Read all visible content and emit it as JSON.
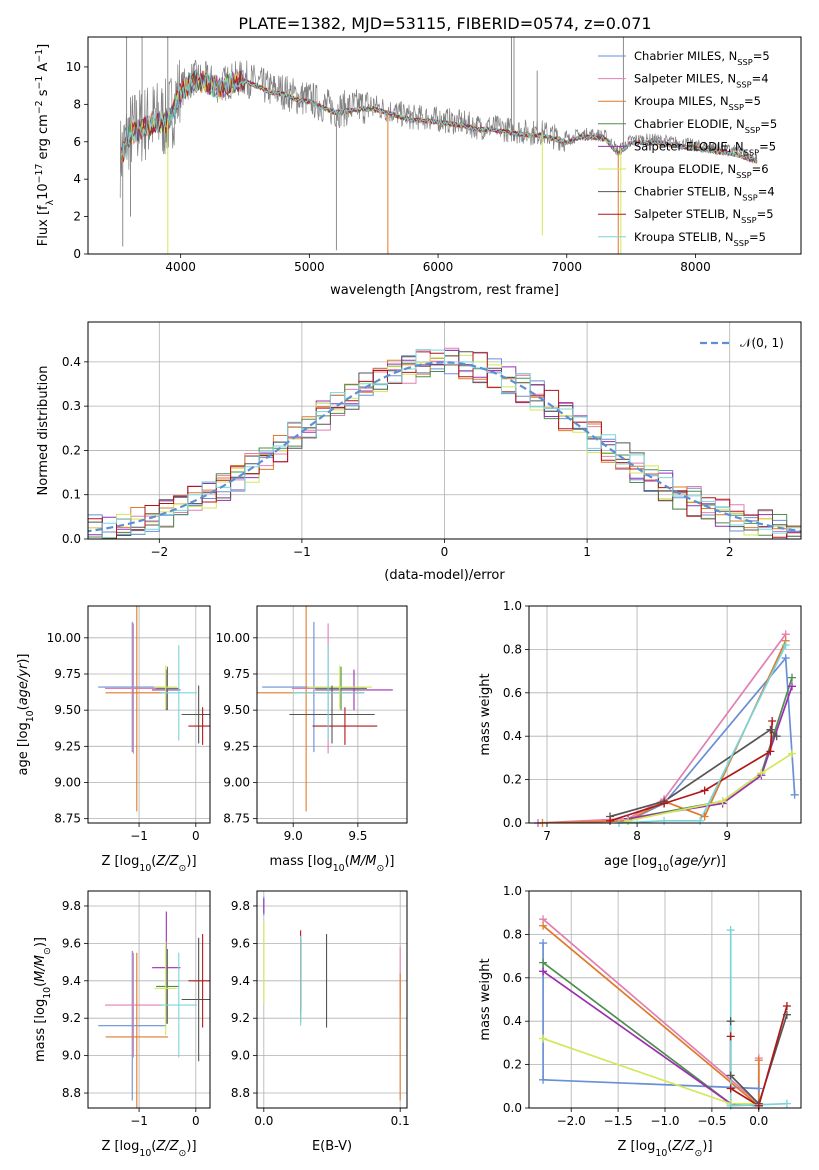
{
  "title": "PLATE=1382, MJD=53115, FIBERID=0574, z=0.071",
  "colors": {
    "Chabrier MILES": "#6a8fd6",
    "Salpeter MILES": "#e27fb2",
    "Kroupa MILES": "#e07a2a",
    "Chabrier ELODIE": "#4e8f4e",
    "Salpeter ELODIE": "#9b2fb0",
    "Kroupa ELODIE": "#d2e85a",
    "Chabrier STELIB": "#555555",
    "Salpeter STELIB": "#b01818",
    "Kroupa STELIB": "#79d5dc",
    "data": "#808080",
    "gaussian": "#5b8fd6"
  },
  "chart_data": [
    {
      "id": "spectrum",
      "type": "line",
      "xlabel": "wavelength [Angstrom, rest frame]",
      "ylabel": "Flux [f_λ 10^-17 erg cm^-2 s^-1 A^-1]",
      "xlim": [
        3280,
        8820
      ],
      "ylim": [
        0,
        11.6
      ],
      "xticks": [
        4000,
        5000,
        6000,
        7000,
        8000
      ],
      "yticks": [
        0,
        2,
        4,
        6,
        8,
        10
      ],
      "legend_position": "upper right",
      "legend": [
        {
          "model": "Chabrier MILES",
          "n": "5"
        },
        {
          "model": "Salpeter MILES",
          "n": "4"
        },
        {
          "model": "Kroupa MILES",
          "n": "5"
        },
        {
          "model": "Chabrier ELODIE",
          "n": "5"
        },
        {
          "model": "Salpeter ELODIE",
          "n": "5"
        },
        {
          "model": "Kroupa ELODIE",
          "n": "6"
        },
        {
          "model": "Chabrier STELIB",
          "n": "4"
        },
        {
          "model": "Salpeter STELIB",
          "n": "5"
        },
        {
          "model": "Kroupa STELIB",
          "n": "5"
        }
      ],
      "data_continuum": [
        [
          3530,
          5.2
        ],
        [
          3600,
          6.5
        ],
        [
          3700,
          6.9
        ],
        [
          3800,
          7.2
        ],
        [
          3900,
          7.2
        ],
        [
          4000,
          8.8
        ],
        [
          4100,
          9.4
        ],
        [
          4200,
          9.3
        ],
        [
          4300,
          9.0
        ],
        [
          4400,
          9.3
        ],
        [
          4500,
          9.4
        ],
        [
          4600,
          9.1
        ],
        [
          4700,
          8.8
        ],
        [
          4800,
          8.7
        ],
        [
          4900,
          8.4
        ],
        [
          5000,
          8.3
        ],
        [
          5100,
          8.0
        ],
        [
          5200,
          7.7
        ],
        [
          5300,
          7.8
        ],
        [
          5400,
          7.9
        ],
        [
          5500,
          7.9
        ],
        [
          5600,
          7.7
        ],
        [
          5700,
          7.5
        ],
        [
          5800,
          7.3
        ],
        [
          5900,
          7.3
        ],
        [
          6000,
          7.2
        ],
        [
          6100,
          7.1
        ],
        [
          6200,
          7.0
        ],
        [
          6300,
          6.8
        ],
        [
          6400,
          6.8
        ],
        [
          6500,
          6.7
        ],
        [
          6600,
          6.6
        ],
        [
          6700,
          6.5
        ],
        [
          6800,
          6.5
        ],
        [
          6900,
          6.3
        ],
        [
          7000,
          6.1
        ],
        [
          7100,
          6.4
        ],
        [
          7200,
          6.4
        ],
        [
          7300,
          6.3
        ],
        [
          7400,
          5.5
        ],
        [
          7500,
          6.1
        ],
        [
          7600,
          6.1
        ],
        [
          7700,
          6.1
        ],
        [
          7800,
          6.0
        ],
        [
          7900,
          5.9
        ],
        [
          8000,
          5.8
        ],
        [
          8100,
          5.7
        ],
        [
          8200,
          5.6
        ],
        [
          8300,
          5.5
        ],
        [
          8400,
          5.3
        ],
        [
          8480,
          5.1
        ]
      ],
      "data_spikes": [
        [
          3550,
          0.4
        ],
        [
          3580,
          11.6
        ],
        [
          3610,
          2.0
        ],
        [
          3700,
          11.6
        ],
        [
          3900,
          11.6
        ],
        [
          5210,
          0.2
        ],
        [
          6570,
          11.6
        ],
        [
          6590,
          11.6
        ],
        [
          6770,
          9.8
        ],
        [
          7440,
          11.6
        ]
      ],
      "model_start": 3540,
      "model_end": 8480,
      "model_dips": [
        [
          3900,
          0.0
        ],
        [
          5610,
          0.0
        ],
        [
          6810,
          1.0
        ],
        [
          7400,
          0.0
        ],
        [
          7420,
          0.0
        ]
      ]
    },
    {
      "id": "residuals",
      "type": "line",
      "xlabel": "(data-model)/error",
      "ylabel": "Normed distribution",
      "xlim": [
        -2.5,
        2.5
      ],
      "ylim": [
        0,
        0.49
      ],
      "xticks": [
        -2,
        -1,
        0,
        1,
        2
      ],
      "yticks": [
        0.0,
        0.1,
        0.2,
        0.3,
        0.4
      ],
      "legend_position": "upper right",
      "gaussian_label": "𝒩(0, 1)",
      "bin_width": 0.1,
      "bin_start": -2.6
    },
    {
      "id": "age_vs_Z",
      "type": "scatter",
      "xlabel": "Z [log10(Z/Z⊙)]",
      "ylabel": "age  [log10(age/yr)]",
      "xlim": [
        -1.9,
        0.25
      ],
      "ylim": [
        8.72,
        10.22
      ],
      "xticks": [
        -1,
        0
      ],
      "yticks": [
        8.75,
        9.0,
        9.25,
        9.5,
        9.75,
        10.0
      ],
      "points": [
        {
          "model": "Chabrier MILES",
          "x": -1.12,
          "xerr": 0.6,
          "y": 9.66,
          "yerr": 0.45
        },
        {
          "model": "Salpeter MILES",
          "x": -1.1,
          "xerr": 0.5,
          "y": 9.65,
          "yerr": 0.45
        },
        {
          "model": "Kroupa MILES",
          "x": -1.04,
          "xerr": 0.55,
          "y": 9.62,
          "yerr": 0.82
        },
        {
          "model": "Chabrier ELODIE",
          "x": -0.5,
          "xerr": 0.2,
          "y": 9.65,
          "yerr": 0.15
        },
        {
          "model": "Salpeter ELODIE",
          "x": -0.52,
          "xerr": 0.25,
          "y": 9.64,
          "yerr": 0.14
        },
        {
          "model": "Kroupa ELODIE",
          "x": -0.53,
          "xerr": 0.2,
          "y": 9.66,
          "yerr": 0.15
        },
        {
          "model": "Chabrier STELIB",
          "x": 0.05,
          "xerr": 0.3,
          "y": 9.47,
          "yerr": 0.2
        },
        {
          "model": "Salpeter STELIB",
          "x": 0.12,
          "xerr": 0.25,
          "y": 9.39,
          "yerr": 0.13
        },
        {
          "model": "Kroupa STELIB",
          "x": -0.3,
          "xerr": 0.32,
          "y": 9.62,
          "yerr": 0.33
        }
      ]
    },
    {
      "id": "age_vs_mass",
      "type": "scatter",
      "xlabel": "mass [log10(M/M⊙)]",
      "ylabel": "",
      "xlim": [
        8.72,
        9.88
      ],
      "ylim": [
        8.72,
        10.22
      ],
      "xticks": [
        9.0,
        9.5
      ],
      "yticks": [
        8.75,
        9.0,
        9.25,
        9.5,
        9.75,
        10.0
      ],
      "points": [
        {
          "model": "Chabrier MILES",
          "x": 9.16,
          "xerr": 0.4,
          "y": 9.66,
          "yerr": 0.45
        },
        {
          "model": "Salpeter MILES",
          "x": 9.27,
          "xerr": 0.28,
          "y": 9.65,
          "yerr": 0.45
        },
        {
          "model": "Kroupa MILES",
          "x": 9.1,
          "xerr": 0.45,
          "y": 9.62,
          "yerr": 0.82
        },
        {
          "model": "Chabrier ELODIE",
          "x": 9.37,
          "xerr": 0.2,
          "y": 9.65,
          "yerr": 0.15
        },
        {
          "model": "Salpeter ELODIE",
          "x": 9.47,
          "xerr": 0.3,
          "y": 9.64,
          "yerr": 0.14
        },
        {
          "model": "Kroupa ELODIE",
          "x": 9.36,
          "xerr": 0.25,
          "y": 9.66,
          "yerr": 0.15
        },
        {
          "model": "Chabrier STELIB",
          "x": 9.3,
          "xerr": 0.33,
          "y": 9.47,
          "yerr": 0.2
        },
        {
          "model": "Salpeter STELIB",
          "x": 9.4,
          "xerr": 0.25,
          "y": 9.39,
          "yerr": 0.13
        },
        {
          "model": "Kroupa STELIB",
          "x": 9.27,
          "xerr": 0.28,
          "y": 9.62,
          "yerr": 0.33
        }
      ]
    },
    {
      "id": "weight_vs_age",
      "type": "line",
      "xlabel": "age  [log10(age/yr)]",
      "ylabel": "mass weight",
      "xlim": [
        6.8,
        9.82
      ],
      "ylim": [
        0,
        1.0
      ],
      "xticks": [
        7,
        8,
        9
      ],
      "yticks": [
        0.0,
        0.2,
        0.4,
        0.6,
        0.8,
        1.0
      ],
      "series": [
        {
          "model": "Chabrier MILES",
          "x": [
            6.9,
            7.9,
            8.3,
            9.65,
            9.75
          ],
          "y": [
            0.0,
            0.01,
            0.09,
            0.76,
            0.13
          ]
        },
        {
          "model": "Salpeter MILES",
          "x": [
            6.9,
            7.9,
            8.3,
            9.65
          ],
          "y": [
            0.0,
            0.02,
            0.11,
            0.87
          ]
        },
        {
          "model": "Kroupa MILES",
          "x": [
            6.95,
            7.9,
            8.3,
            8.75,
            9.65
          ],
          "y": [
            0.0,
            0.01,
            0.1,
            0.03,
            0.84
          ]
        },
        {
          "model": "Chabrier ELODIE",
          "x": [
            7.9,
            8.95,
            9.38,
            9.72
          ],
          "y": [
            0.02,
            0.1,
            0.23,
            0.67
          ]
        },
        {
          "model": "Salpeter ELODIE",
          "x": [
            7.9,
            8.95,
            9.38,
            9.72
          ],
          "y": [
            0.02,
            0.09,
            0.22,
            0.63
          ]
        },
        {
          "model": "Kroupa ELODIE",
          "x": [
            7.9,
            8.95,
            9.38,
            9.72
          ],
          "y": [
            0.01,
            0.1,
            0.23,
            0.32
          ]
        },
        {
          "model": "Chabrier STELIB",
          "x": [
            7.7,
            8.3,
            9.48,
            9.55
          ],
          "y": [
            0.03,
            0.1,
            0.43,
            0.4
          ]
        },
        {
          "model": "Salpeter STELIB",
          "x": [
            7.7,
            8.3,
            8.75,
            9.48,
            9.5
          ],
          "y": [
            0.01,
            0.09,
            0.15,
            0.33,
            0.47
          ]
        },
        {
          "model": "Kroupa STELIB",
          "x": [
            7.8,
            8.3,
            8.7,
            9.65
          ],
          "y": [
            0.0,
            0.01,
            0.01,
            0.82
          ]
        }
      ]
    },
    {
      "id": "mass_vs_Z",
      "type": "scatter",
      "xlabel": "Z [log10(Z/Z⊙)]",
      "ylabel": "mass [log10(M/M⊙)]",
      "xlim": [
        -1.9,
        0.25
      ],
      "ylim": [
        8.72,
        9.88
      ],
      "xticks": [
        -1,
        0
      ],
      "yticks": [
        8.8,
        9.0,
        9.2,
        9.4,
        9.6,
        9.8
      ],
      "points": [
        {
          "model": "Chabrier MILES",
          "x": -1.12,
          "xerr": 0.6,
          "y": 9.16,
          "yerr": 0.4
        },
        {
          "model": "Salpeter MILES",
          "x": -1.1,
          "xerr": 0.5,
          "y": 9.27,
          "yerr": 0.28
        },
        {
          "model": "Kroupa MILES",
          "x": -1.04,
          "xerr": 0.55,
          "y": 9.1,
          "yerr": 0.45
        },
        {
          "model": "Chabrier ELODIE",
          "x": -0.5,
          "xerr": 0.2,
          "y": 9.37,
          "yerr": 0.2
        },
        {
          "model": "Salpeter ELODIE",
          "x": -0.52,
          "xerr": 0.25,
          "y": 9.47,
          "yerr": 0.3
        },
        {
          "model": "Kroupa ELODIE",
          "x": -0.53,
          "xerr": 0.2,
          "y": 9.36,
          "yerr": 0.25
        },
        {
          "model": "Chabrier STELIB",
          "x": 0.05,
          "xerr": 0.3,
          "y": 9.3,
          "yerr": 0.33
        },
        {
          "model": "Salpeter STELIB",
          "x": 0.12,
          "xerr": 0.25,
          "y": 9.4,
          "yerr": 0.25
        },
        {
          "model": "Kroupa STELIB",
          "x": -0.3,
          "xerr": 0.32,
          "y": 9.27,
          "yerr": 0.28
        }
      ]
    },
    {
      "id": "mass_vs_EBV",
      "type": "scatter",
      "xlabel": "E(B-V)",
      "ylabel": "",
      "xlim": [
        -0.005,
        0.105
      ],
      "ylim": [
        8.72,
        9.88
      ],
      "xticks": [
        0.0,
        0.1
      ],
      "yticks": [
        8.8,
        9.0,
        9.2,
        9.4,
        9.6,
        9.8
      ],
      "points": [
        {
          "model": "Chabrier MILES",
          "x": 0.0,
          "y": 9.8,
          "yerr": 0.05
        },
        {
          "model": "Salpeter MILES",
          "x": 0.1,
          "y": 9.4,
          "yerr": 0.18
        },
        {
          "model": "Kroupa MILES",
          "x": 0.1,
          "y": 9.1,
          "yerr": 0.34
        },
        {
          "model": "Chabrier ELODIE",
          "x": 0.027,
          "y": 9.4,
          "yerr": 0.22
        },
        {
          "model": "Salpeter ELODIE",
          "x": 0.0,
          "y": 9.8,
          "yerr": 0.04
        },
        {
          "model": "Kroupa ELODIE",
          "x": 0.0,
          "y": 9.5,
          "yerr": 0.22
        },
        {
          "model": "Chabrier STELIB",
          "x": 0.046,
          "y": 9.4,
          "yerr": 0.25
        },
        {
          "model": "Salpeter STELIB",
          "x": 0.027,
          "y": 9.45,
          "yerr": 0.22
        },
        {
          "model": "Kroupa STELIB",
          "x": 0.027,
          "y": 9.4,
          "yerr": 0.24
        }
      ]
    },
    {
      "id": "weight_vs_Z",
      "type": "line",
      "xlabel": "Z [log10(Z/Z⊙)]",
      "ylabel": "mass weight",
      "xlim": [
        -2.45,
        0.45
      ],
      "ylim": [
        0,
        1.0
      ],
      "xticks": [
        -2.0,
        -1.5,
        -1.0,
        -0.5,
        0.0
      ],
      "yticks": [
        0.0,
        0.2,
        0.4,
        0.6,
        0.8,
        1.0
      ],
      "series": [
        {
          "model": "Chabrier MILES",
          "x": [
            -2.3,
            -2.3,
            0.0,
            0.0
          ],
          "y": [
            0.76,
            0.13,
            0.09,
            0.01
          ]
        },
        {
          "model": "Salpeter MILES",
          "x": [
            -2.3,
            0.0,
            0.0
          ],
          "y": [
            0.87,
            0.02,
            0.23
          ]
        },
        {
          "model": "Kroupa MILES",
          "x": [
            -2.3,
            0.0,
            0.0
          ],
          "y": [
            0.84,
            0.01,
            0.22
          ]
        },
        {
          "model": "Chabrier ELODIE",
          "x": [
            -2.3,
            -0.3,
            0.0
          ],
          "y": [
            0.67,
            0.02,
            0.01
          ]
        },
        {
          "model": "Salpeter ELODIE",
          "x": [
            -2.3,
            -0.3,
            0.0
          ],
          "y": [
            0.63,
            0.02,
            0.01
          ]
        },
        {
          "model": "Kroupa ELODIE",
          "x": [
            -2.3,
            -0.3,
            0.0
          ],
          "y": [
            0.32,
            0.02,
            0.02
          ]
        },
        {
          "model": "Chabrier STELIB",
          "x": [
            -0.3,
            -0.3,
            0.0,
            0.3
          ],
          "y": [
            0.4,
            0.15,
            0.02,
            0.43
          ]
        },
        {
          "model": "Salpeter STELIB",
          "x": [
            -0.3,
            -0.3,
            0.0,
            0.3
          ],
          "y": [
            0.33,
            0.09,
            0.01,
            0.47
          ]
        },
        {
          "model": "Kroupa STELIB",
          "x": [
            -0.3,
            -0.3,
            0.3
          ],
          "y": [
            0.82,
            0.01,
            0.02
          ]
        }
      ]
    }
  ]
}
